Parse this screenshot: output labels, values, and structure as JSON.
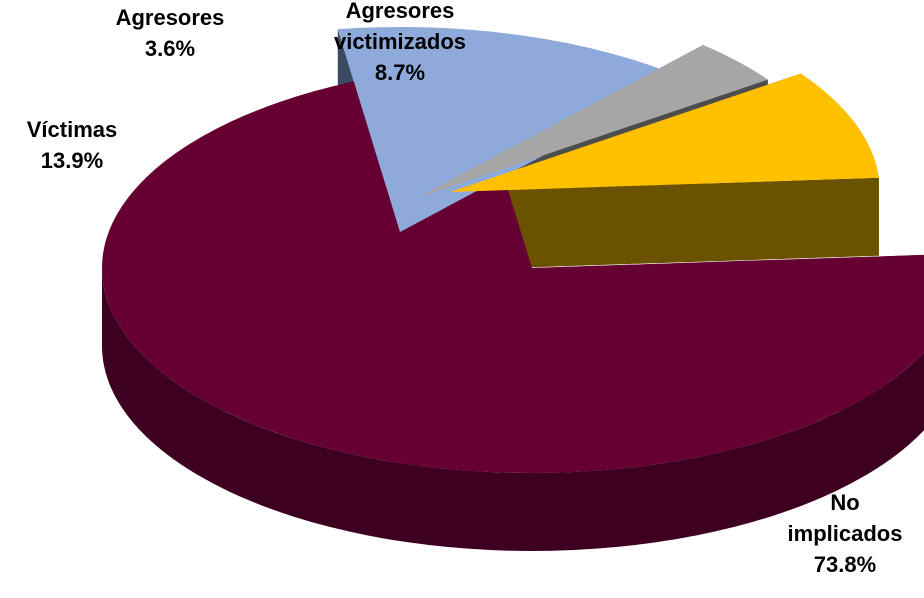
{
  "chart_data": {
    "type": "pie",
    "title": "",
    "slices": [
      {
        "label_lines": [
          "No",
          "implicados"
        ],
        "value": 73.8,
        "value_label": "73.8%",
        "color": "#660033",
        "side_color": "#3d0020"
      },
      {
        "label_lines": [
          "Víctimas"
        ],
        "value": 13.9,
        "value_label": "13.9%",
        "color": "#8eaadb",
        "side_color": "#3a4a63"
      },
      {
        "label_lines": [
          "Agresores"
        ],
        "value": 3.6,
        "value_label": "3.6%",
        "color": "#a6a6a6",
        "side_color": "#4d4d4d"
      },
      {
        "label_lines": [
          "Agresores",
          "victimizados"
        ],
        "value": 8.7,
        "value_label": "8.7%",
        "color": "#ffc000",
        "side_color": "#6b5200"
      }
    ],
    "exploded": true,
    "three_d": true,
    "legend": "none"
  }
}
